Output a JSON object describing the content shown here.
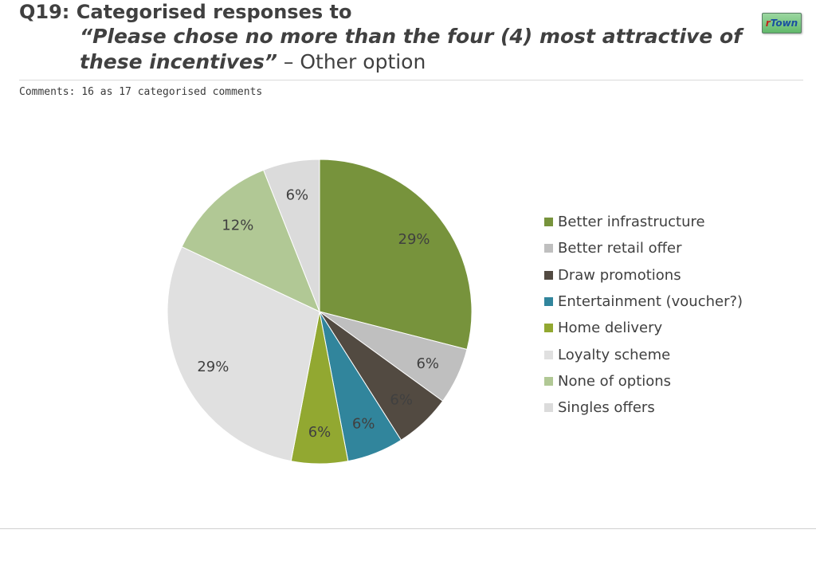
{
  "header": {
    "title_prefix": "Q19: Categorised responses to",
    "question_line1": "“Please chose no more than the four (4) most attractive of",
    "question_line2": "these incentives”",
    "separator": " – ",
    "suffix": "Other option"
  },
  "logo": {
    "text_r": "r",
    "text_rest": "Town"
  },
  "comments": "Comments: 16 as 17 categorised comments",
  "chart_data": {
    "type": "pie",
    "start_angle_deg": 0,
    "direction": "clockwise",
    "slices": [
      {
        "label": "Better infrastructure",
        "value": 29,
        "display": "29%",
        "color": "#77933C"
      },
      {
        "label": "Better retail offer",
        "value": 6,
        "display": "6%",
        "color": "#BFBFBF"
      },
      {
        "label": "Draw promotions",
        "value": 6,
        "display": "6%",
        "color": "#524A41"
      },
      {
        "label": "Entertainment (voucher?)",
        "value": 6,
        "display": "6%",
        "color": "#31859C"
      },
      {
        "label": "Home delivery",
        "value": 6,
        "display": "6%",
        "color": "#92A831"
      },
      {
        "label": "Loyalty scheme",
        "value": 29,
        "display": "29%",
        "color": "#E0E0E0"
      },
      {
        "label": "None of options",
        "value": 12,
        "display": "12%",
        "color": "#B1C895"
      },
      {
        "label": "Singles offers",
        "value": 6,
        "display": "6%",
        "color": "#DBDBDB"
      }
    ],
    "legend_position": "right"
  }
}
